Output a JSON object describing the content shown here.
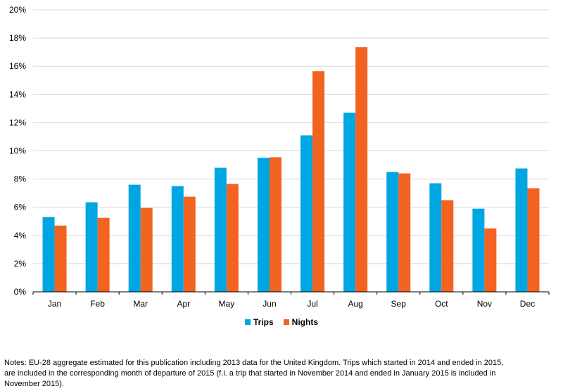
{
  "chart_data": {
    "type": "bar",
    "categories": [
      "Jan",
      "Feb",
      "Mar",
      "Apr",
      "May",
      "Jun",
      "Jul",
      "Aug",
      "Sep",
      "Oct",
      "Nov",
      "Dec"
    ],
    "series": [
      {
        "name": "Trips",
        "color": "#00a6e2",
        "values": [
          5.3,
          6.35,
          7.6,
          7.5,
          8.8,
          9.5,
          11.1,
          12.7,
          8.5,
          7.7,
          5.9,
          8.75
        ]
      },
      {
        "name": "Nights",
        "color": "#f26321",
        "values": [
          4.7,
          5.25,
          5.95,
          6.75,
          7.65,
          9.55,
          15.65,
          17.35,
          8.4,
          6.5,
          4.5,
          7.35
        ]
      }
    ],
    "ylim": [
      0,
      20
    ],
    "yticks": [
      0,
      2,
      4,
      6,
      8,
      10,
      12,
      14,
      16,
      18,
      20
    ],
    "ytick_labels": [
      "0%",
      "2%",
      "4%",
      "6%",
      "8%",
      "10%",
      "12%",
      "14%",
      "16%",
      "18%",
      "20%"
    ],
    "grid": true,
    "legend": "bottom-center"
  },
  "legend": {
    "trips": "Trips",
    "nights": "Nights"
  },
  "notes": "Notes: EU-28 aggregate estimated for this publication including 2013 data for the United Kingdom. Trips which started in 2014 and ended in 2015, are included in the corresponding month of departure of 2015 (f.i. a trip that started in November 2014 and ended in January 2015 is included in November 2015)."
}
